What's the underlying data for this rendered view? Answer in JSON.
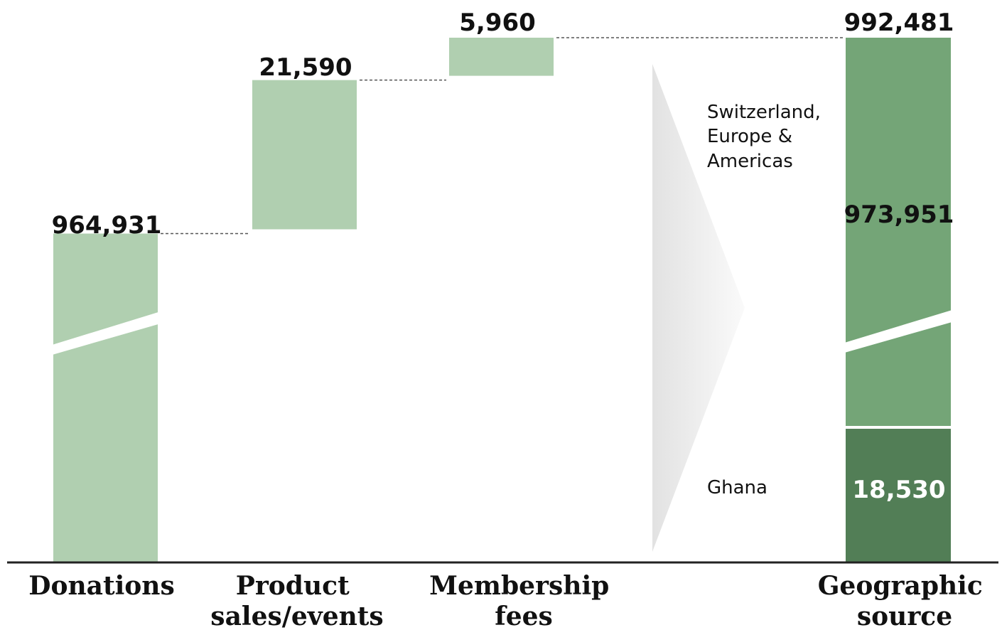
{
  "chart_data": {
    "type": "waterfall",
    "steps": [
      {
        "label": "Donations",
        "value": 964931,
        "value_label": "964,931",
        "color": "#b0cfb0"
      },
      {
        "label": "Product sales/events",
        "value": 21590,
        "value_label": "21,590",
        "color": "#b0cfb0"
      },
      {
        "label": "Membership fees",
        "value": 5960,
        "value_label": "5,960",
        "color": "#b0cfb0"
      }
    ],
    "total": {
      "label": "Geographic source",
      "value": 992481,
      "value_label": "992,481",
      "segments": [
        {
          "name": "Ghana",
          "value": 18530,
          "value_label": "18,530",
          "color": "#527e56"
        },
        {
          "name": "Switzerland, Europe & Americas",
          "value": 973951,
          "value_label": "973,951",
          "color": "#74a577"
        }
      ]
    },
    "axis_break": true,
    "connectors": "dashed"
  }
}
